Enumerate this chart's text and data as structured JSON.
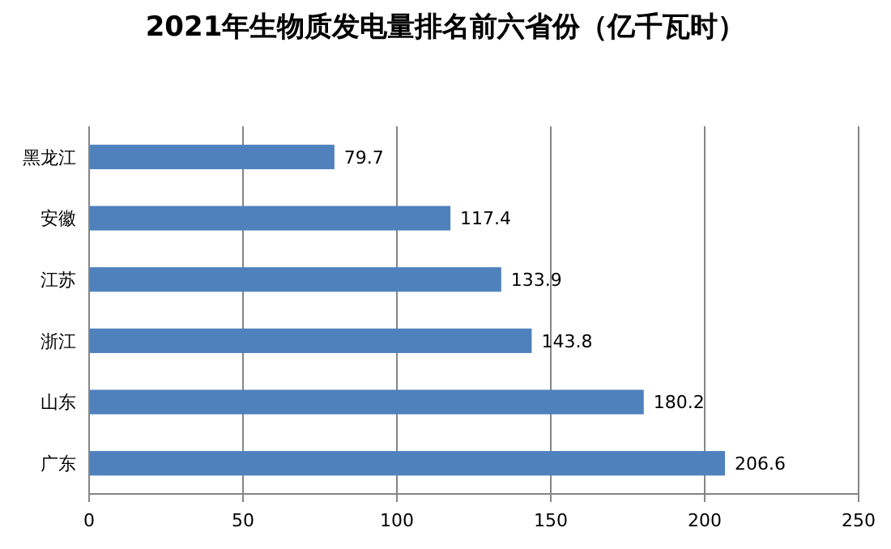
{
  "chart_data": {
    "type": "bar",
    "orientation": "horizontal",
    "title": "2021年生物质发电量排名前六省份（亿千瓦时）",
    "categories": [
      "黑龙江",
      "安徽",
      "江苏",
      "浙江",
      "山东",
      "广东"
    ],
    "values": [
      79.7,
      117.4,
      133.9,
      143.8,
      180.2,
      206.6
    ],
    "color": "#4f81bd",
    "data_labels": true,
    "xlim": [
      0,
      250
    ],
    "xticks": [
      0,
      50,
      100,
      150,
      200,
      250
    ],
    "grid": "x"
  }
}
